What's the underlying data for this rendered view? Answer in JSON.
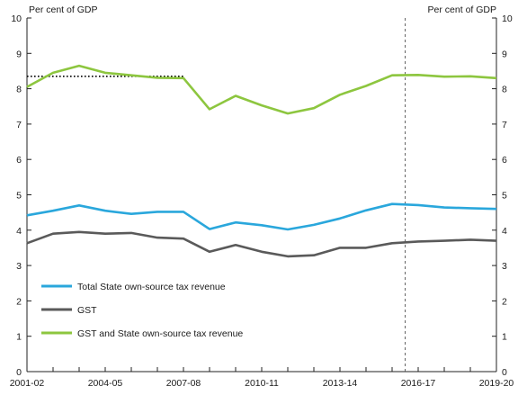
{
  "chart_data": {
    "type": "line",
    "ylabel_left": "Per cent of GDP",
    "ylabel_right": "Per cent of GDP",
    "ylim": [
      0,
      10
    ],
    "yticks": [
      0,
      1,
      2,
      3,
      4,
      5,
      6,
      7,
      8,
      9,
      10
    ],
    "x": [
      "2001-02",
      "2002-03",
      "2003-04",
      "2004-05",
      "2005-06",
      "2006-07",
      "2007-08",
      "2008-09",
      "2009-10",
      "2010-11",
      "2011-12",
      "2012-13",
      "2013-14",
      "2014-15",
      "2015-16",
      "2016-17",
      "2017-18",
      "2018-19",
      "2019-20"
    ],
    "xtick_labels": [
      "2001-02",
      "2004-05",
      "2007-08",
      "2010-11",
      "2013-14",
      "2016-17",
      "2019-20"
    ],
    "series": [
      {
        "name": "Total State own-source tax revenue",
        "color": "#2aa7dc",
        "values": [
          4.42,
          4.55,
          4.7,
          4.55,
          4.46,
          4.52,
          4.52,
          4.03,
          4.22,
          4.14,
          4.02,
          4.15,
          4.33,
          4.56,
          4.74,
          4.71,
          4.64,
          4.62,
          4.6
        ]
      },
      {
        "name": "GST",
        "color": "#5a5a5a",
        "values": [
          3.63,
          3.9,
          3.95,
          3.9,
          3.92,
          3.79,
          3.76,
          3.39,
          3.58,
          3.39,
          3.26,
          3.29,
          3.5,
          3.5,
          3.63,
          3.68,
          3.7,
          3.73,
          3.7
        ]
      },
      {
        "name": "GST and State own-source tax revenue",
        "color": "#8dc63f",
        "values": [
          8.05,
          8.45,
          8.65,
          8.45,
          8.38,
          8.31,
          8.3,
          7.42,
          7.8,
          7.53,
          7.3,
          7.45,
          7.83,
          8.08,
          8.38,
          8.39,
          8.34,
          8.35,
          8.3
        ]
      }
    ],
    "reference_line": {
      "style": "dotted",
      "color": "#000000",
      "value": 8.35,
      "x_start": "2001-02",
      "x_end": "2007-08"
    },
    "vertical_line": {
      "style": "dashed",
      "color": "#555555",
      "x": "2016-17",
      "offset": -0.5
    },
    "legend_position": "lower-left",
    "grid": false
  }
}
